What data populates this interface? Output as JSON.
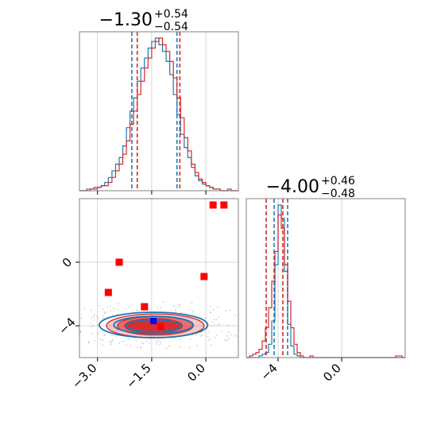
{
  "colors": {
    "blue": "#1f77b4",
    "red": "#d62728",
    "grid": "#cccccc",
    "frame": "#808080",
    "red_marker": "#ff0000",
    "blue_marker": "#0000ff"
  },
  "chart_data": [
    {
      "type": "histogram",
      "panel": "top-left",
      "title": {
        "main": "−1.30",
        "sup": "+0.54",
        "sub": "−0.54"
      },
      "xlim": [
        -3.5,
        0.9
      ],
      "x_ticks": [
        -3.0,
        -1.5,
        0.0
      ],
      "grid": true,
      "bin_edges": [
        -3.5,
        -3.4,
        -3.3,
        -3.2,
        -3.1,
        -3.0,
        -2.9,
        -2.8,
        -2.7,
        -2.6,
        -2.5,
        -2.4,
        -2.3,
        -2.2,
        -2.1,
        -2.0,
        -1.9,
        -1.8,
        -1.7,
        -1.6,
        -1.5,
        -1.4,
        -1.3,
        -1.2,
        -1.1,
        -1.0,
        -0.9,
        -0.8,
        -0.7,
        -0.6,
        -0.5,
        -0.4,
        -0.3,
        -0.2,
        -0.1,
        0.0,
        0.1,
        0.2,
        0.3,
        0.4,
        0.5,
        0.6,
        0.7,
        0.8,
        0.9
      ],
      "series": [
        {
          "color": "blue",
          "counts": [
            0,
            0,
            1,
            1,
            2,
            2,
            3,
            5,
            8,
            12,
            16,
            20,
            27,
            38,
            48,
            56,
            66,
            74,
            80,
            86,
            90,
            92,
            88,
            84,
            78,
            70,
            58,
            46,
            34,
            26,
            20,
            14,
            9,
            6,
            4,
            3,
            2,
            1,
            1,
            0,
            0,
            0,
            0,
            0
          ],
          "quantile_lines": [
            -2.05,
            -0.8
          ]
        },
        {
          "color": "red",
          "counts": [
            0,
            0,
            0,
            1,
            1,
            2,
            3,
            3,
            5,
            8,
            12,
            16,
            22,
            30,
            40,
            48,
            58,
            66,
            74,
            80,
            86,
            90,
            92,
            88,
            84,
            78,
            68,
            56,
            44,
            32,
            24,
            16,
            11,
            7,
            5,
            3,
            2,
            1,
            1,
            0,
            0,
            1,
            0,
            0
          ],
          "quantile_lines": [
            -1.9,
            -0.72
          ]
        }
      ],
      "y_relative_max": 92
    },
    {
      "type": "histogram",
      "panel": "bottom-right",
      "title": {
        "main": "−4.00",
        "sup": "+0.46",
        "sub": "−0.48"
      },
      "xlim": [
        -6.0,
        4.0
      ],
      "x_ticks": [
        -4,
        0
      ],
      "grid": true,
      "bin_edges": [
        -6.0,
        -5.8,
        -5.6,
        -5.4,
        -5.2,
        -5.0,
        -4.8,
        -4.6,
        -4.4,
        -4.2,
        -4.0,
        -3.8,
        -3.6,
        -3.4,
        -3.2,
        -3.0,
        -2.8,
        -2.6,
        -2.4,
        -2.2,
        -2.0,
        -1.8,
        -1.6,
        -1.4,
        -1.2,
        -1.0,
        -0.8,
        -0.6,
        -0.4,
        -0.2,
        0.0,
        0.2,
        0.4,
        0.6,
        0.8,
        1.0,
        1.2,
        1.4,
        1.6,
        1.8,
        2.0,
        2.2,
        2.4,
        2.6,
        2.8,
        3.0,
        3.2,
        3.4,
        3.6,
        3.8,
        4.0
      ],
      "series": [
        {
          "color": "blue",
          "counts": [
            0,
            0,
            0,
            0,
            1,
            2,
            3,
            8,
            22,
            56,
            92,
            84,
            52,
            20,
            7,
            2,
            1,
            0,
            0,
            0,
            0,
            0,
            0,
            0,
            0,
            0,
            0,
            0,
            0,
            0,
            0,
            0,
            0,
            0,
            0,
            0,
            0,
            0,
            0,
            0,
            0,
            0,
            0,
            0,
            0,
            0,
            0,
            0,
            0,
            0
          ],
          "quantile_lines": [
            -4.25,
            -3.4
          ]
        },
        {
          "color": "red",
          "counts": [
            0,
            1,
            2,
            3,
            5,
            10,
            18,
            30,
            46,
            64,
            86,
            78,
            56,
            34,
            18,
            8,
            3,
            1,
            0,
            0,
            1,
            0,
            0,
            0,
            0,
            0,
            0,
            0,
            0,
            0,
            0,
            0,
            0,
            0,
            0,
            0,
            0,
            0,
            0,
            0,
            0,
            0,
            0,
            0,
            0,
            0,
            0,
            1,
            1,
            0
          ],
          "quantile_lines": [
            -4.75,
            -3.7
          ]
        }
      ],
      "y_relative_max": 92
    },
    {
      "type": "scatter-contour",
      "panel": "bottom-left",
      "xlim": [
        -3.5,
        0.9
      ],
      "ylim": [
        -6.0,
        4.0
      ],
      "x_ticks": [
        -3.0,
        -1.5,
        0.0
      ],
      "y_ticks": [
        0,
        -4
      ],
      "grid": true,
      "contour_levels": [
        {
          "color": "red",
          "center": [
            -1.4,
            -4.0
          ],
          "semi_axes": [
            1.35,
            0.75
          ],
          "filled": true,
          "shade": "light"
        },
        {
          "color": "red",
          "center": [
            -1.4,
            -4.0
          ],
          "semi_axes": [
            1.05,
            0.58
          ],
          "filled": true,
          "shade": "mid"
        },
        {
          "color": "red",
          "center": [
            -1.45,
            -4.0
          ],
          "semi_axes": [
            0.8,
            0.45
          ],
          "filled": true,
          "shade": "dark"
        },
        {
          "color": "blue",
          "center": [
            -1.45,
            -3.95
          ],
          "semi_axes": [
            1.5,
            0.8
          ],
          "filled": false
        },
        {
          "color": "blue",
          "center": [
            -1.45,
            -3.95
          ],
          "semi_axes": [
            1.1,
            0.55
          ],
          "filled": false
        },
        {
          "color": "blue",
          "center": [
            -1.45,
            -4.0
          ],
          "semi_axes": [
            0.75,
            0.38
          ],
          "filled": false
        }
      ],
      "red_points": [
        {
          "x": 0.2,
          "y": 3.6
        },
        {
          "x": 0.5,
          "y": 3.6
        },
        {
          "x": -2.4,
          "y": 0.0
        },
        {
          "x": -0.05,
          "y": -0.9
        },
        {
          "x": -2.7,
          "y": -1.9
        },
        {
          "x": -1.7,
          "y": -2.8
        },
        {
          "x": -1.25,
          "y": -4.05
        }
      ],
      "blue_points": [
        {
          "x": -1.45,
          "y": -3.7
        }
      ]
    }
  ]
}
